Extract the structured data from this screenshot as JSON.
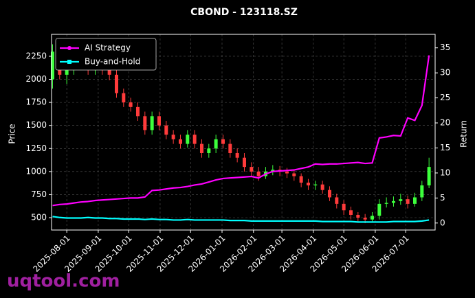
{
  "chart_data": {
    "type": "candlestick-lines",
    "title": "CBOND - 123118.SZ",
    "ylabel": "Price",
    "y2label": "Return",
    "watermark": "uqtool.com",
    "x": [
      "2025-07-18",
      "2025-07-25",
      "2025-08-01",
      "2025-08-08",
      "2025-08-15",
      "2025-08-22",
      "2025-08-29",
      "2025-09-05",
      "2025-09-12",
      "2025-09-19",
      "2025-09-26",
      "2025-10-03",
      "2025-10-10",
      "2025-10-17",
      "2025-10-24",
      "2025-10-31",
      "2025-11-07",
      "2025-11-14",
      "2025-11-21",
      "2025-11-28",
      "2025-12-05",
      "2025-12-12",
      "2025-12-19",
      "2025-12-26",
      "2026-01-02",
      "2026-01-09",
      "2026-01-16",
      "2026-01-23",
      "2026-01-30",
      "2026-02-06",
      "2026-02-13",
      "2026-02-20",
      "2026-02-27",
      "2026-03-06",
      "2026-03-13",
      "2026-03-20",
      "2026-03-27",
      "2026-04-03",
      "2026-04-10",
      "2026-04-17",
      "2026-04-24",
      "2026-05-01",
      "2026-05-08",
      "2026-05-15",
      "2026-05-22",
      "2026-05-29",
      "2026-06-05",
      "2026-06-12",
      "2026-06-19",
      "2026-06-26",
      "2026-07-03",
      "2026-07-10",
      "2026-07-17",
      "2026-07-24"
    ],
    "candles": {
      "up_color": "#3cff3c",
      "down_color": "#ff3b3b",
      "open": [
        2000,
        2300,
        2050,
        2100,
        2150,
        2200,
        2100,
        2150,
        2100,
        2050,
        1850,
        1750,
        1700,
        1600,
        1450,
        1600,
        1500,
        1400,
        1350,
        1300,
        1400,
        1300,
        1200,
        1250,
        1350,
        1300,
        1200,
        1150,
        1050,
        1000,
        950,
        1000,
        1020,
        1000,
        980,
        950,
        880,
        850,
        860,
        800,
        720,
        650,
        580,
        530,
        500,
        480,
        520,
        650,
        660,
        680,
        700,
        650,
        720,
        850
      ],
      "high": [
        2380,
        2360,
        2150,
        2200,
        2260,
        2250,
        2200,
        2200,
        2150,
        2100,
        1900,
        1800,
        1750,
        1650,
        1650,
        1650,
        1550,
        1450,
        1400,
        1450,
        1450,
        1350,
        1300,
        1400,
        1400,
        1350,
        1250,
        1200,
        1100,
        1050,
        1050,
        1070,
        1060,
        1040,
        1020,
        980,
        920,
        900,
        900,
        840,
        760,
        690,
        620,
        560,
        540,
        560,
        700,
        720,
        730,
        760,
        740,
        770,
        900,
        1150
      ],
      "low": [
        1900,
        2000,
        1950,
        2050,
        2100,
        2050,
        2050,
        2050,
        1990,
        1800,
        1700,
        1650,
        1550,
        1400,
        1400,
        1450,
        1350,
        1300,
        1250,
        1260,
        1250,
        1150,
        1150,
        1200,
        1250,
        1150,
        1100,
        1000,
        950,
        900,
        920,
        960,
        950,
        930,
        900,
        830,
        800,
        800,
        760,
        680,
        600,
        530,
        480,
        460,
        440,
        460,
        480,
        610,
        620,
        640,
        600,
        620,
        680,
        820
      ],
      "close": [
        2300,
        2050,
        2100,
        2150,
        2200,
        2100,
        2150,
        2100,
        2050,
        1850,
        1750,
        1700,
        1600,
        1450,
        1600,
        1500,
        1400,
        1350,
        1300,
        1400,
        1300,
        1200,
        1250,
        1350,
        1300,
        1200,
        1150,
        1050,
        1000,
        950,
        1000,
        1020,
        1000,
        980,
        950,
        880,
        850,
        860,
        800,
        720,
        650,
        580,
        530,
        500,
        480,
        520,
        650,
        660,
        680,
        700,
        650,
        720,
        850,
        1050
      ]
    },
    "series": [
      {
        "name": "AI Strategy",
        "color": "#ff00ff",
        "axis": "y2",
        "marker": "circle",
        "values": [
          3.5,
          3.7,
          3.8,
          4.0,
          4.2,
          4.3,
          4.5,
          4.6,
          4.7,
          4.8,
          4.9,
          5.0,
          5.0,
          5.2,
          6.5,
          6.6,
          6.8,
          7.0,
          7.1,
          7.3,
          7.6,
          7.8,
          8.2,
          8.6,
          8.9,
          9.0,
          9.1,
          9.2,
          9.3,
          9.0,
          9.8,
          10.3,
          10.4,
          10.5,
          10.6,
          10.9,
          11.2,
          11.8,
          11.7,
          11.8,
          11.8,
          11.9,
          12.0,
          12.1,
          11.9,
          12.0,
          17.0,
          17.2,
          17.5,
          17.4,
          21.0,
          20.5,
          23.5,
          33.5
        ]
      },
      {
        "name": "Buy-and-Hold",
        "color": "#00ffff",
        "axis": "y2",
        "marker": "square",
        "values": [
          1.3,
          1.1,
          1.0,
          1.0,
          1.0,
          1.1,
          1.0,
          1.0,
          0.9,
          0.9,
          0.8,
          0.8,
          0.8,
          0.7,
          0.8,
          0.7,
          0.7,
          0.6,
          0.6,
          0.7,
          0.6,
          0.6,
          0.6,
          0.6,
          0.6,
          0.5,
          0.5,
          0.5,
          0.4,
          0.4,
          0.4,
          0.4,
          0.4,
          0.4,
          0.4,
          0.4,
          0.4,
          0.4,
          0.3,
          0.3,
          0.3,
          0.3,
          0.3,
          0.2,
          0.2,
          0.2,
          0.2,
          0.2,
          0.3,
          0.3,
          0.3,
          0.3,
          0.4,
          0.6
        ]
      }
    ],
    "xlim": [
      "2025-07-17",
      "2026-07-30"
    ],
    "xticks": [
      "2025-08-01",
      "2025-09-01",
      "2025-10-01",
      "2025-11-01",
      "2025-12-01",
      "2026-01-01",
      "2026-02-01",
      "2026-03-01",
      "2026-04-01",
      "2026-05-01",
      "2026-06-01",
      "2026-07-01"
    ],
    "ylim": [
      366,
      2488
    ],
    "yticks": [
      500,
      750,
      1000,
      1250,
      1500,
      1750,
      2000,
      2250
    ],
    "y2lim": [
      -1.4,
      37.7
    ],
    "y2ticks": [
      0,
      5,
      10,
      15,
      20,
      25,
      30,
      35
    ],
    "grid": true,
    "legend": "upper-left"
  }
}
